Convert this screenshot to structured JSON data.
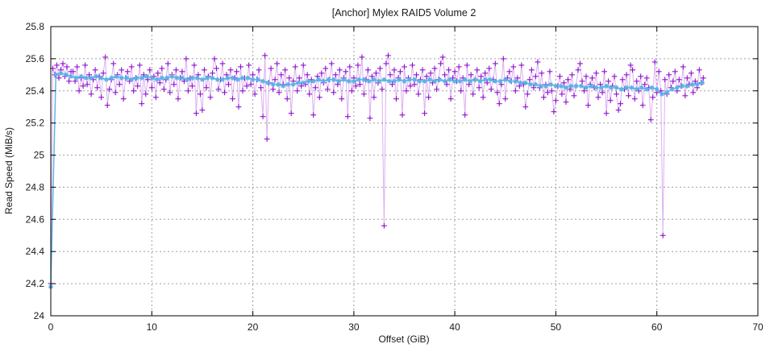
{
  "chart_data": {
    "type": "line",
    "title": "[Anchor] Mylex RAID5 Volume 2",
    "xlabel": "Offset (GiB)",
    "ylabel": "Read Speed (MiB/s)",
    "xlim": [
      0,
      70
    ],
    "ylim": [
      24,
      25.8
    ],
    "xticks": [
      0,
      10,
      20,
      30,
      40,
      50,
      60,
      70
    ],
    "yticks": [
      24,
      24.2,
      24.4,
      24.6,
      24.8,
      25,
      25.2,
      25.4,
      25.6,
      25.8
    ],
    "grid": true,
    "legend": "none",
    "colors": {
      "samples_marker": "#9011cf",
      "samples_line": "#b44fe0",
      "average": "#58b2e3",
      "grid": "#a0a0a0",
      "frame": "#000000",
      "text": "#1a1a1a"
    },
    "series": [
      {
        "name": "read-speed-samples",
        "marker": "plus",
        "color": "#9011cf",
        "line_color": "#b44fe0",
        "line_opacity": 0.45,
        "x_start": 0,
        "x_step": 0.2,
        "values": [
          24.2,
          25.54,
          25.5,
          25.56,
          25.48,
          25.53,
          25.57,
          25.49,
          25.55,
          25.46,
          25.52,
          25.52,
          25.46,
          25.55,
          25.4,
          25.48,
          25.43,
          25.56,
          25.44,
          25.5,
          25.38,
          25.47,
          25.53,
          25.42,
          25.49,
          25.36,
          25.51,
          25.61,
          25.31,
          25.41,
          25.47,
          25.57,
          25.39,
          25.5,
          25.44,
          25.53,
          25.35,
          25.48,
          25.52,
          25.46,
          25.55,
          25.4,
          25.48,
          25.43,
          25.56,
          25.32,
          25.5,
          25.38,
          25.47,
          25.53,
          25.42,
          25.49,
          25.36,
          25.51,
          25.45,
          25.54,
          25.41,
          25.47,
          25.57,
          25.39,
          25.5,
          25.44,
          25.53,
          25.35,
          25.48,
          25.52,
          25.46,
          25.6,
          25.4,
          25.48,
          25.43,
          25.56,
          25.26,
          25.5,
          25.38,
          25.28,
          25.53,
          25.42,
          25.49,
          25.36,
          25.51,
          25.6,
          25.54,
          25.41,
          25.47,
          25.57,
          25.39,
          25.5,
          25.44,
          25.53,
          25.35,
          25.48,
          25.52,
          25.3,
          25.55,
          25.4,
          25.48,
          25.43,
          25.56,
          25.44,
          25.5,
          25.38,
          25.47,
          25.53,
          25.42,
          25.24,
          25.62,
          25.1,
          25.45,
          25.54,
          25.41,
          25.47,
          25.57,
          25.39,
          25.5,
          25.44,
          25.53,
          25.35,
          25.48,
          25.26,
          25.46,
          25.55,
          25.4,
          25.48,
          25.43,
          25.56,
          25.44,
          25.5,
          25.38,
          25.47,
          25.25,
          25.42,
          25.49,
          25.36,
          25.51,
          25.45,
          25.54,
          25.41,
          25.47,
          25.57,
          25.39,
          25.5,
          25.44,
          25.53,
          25.35,
          25.48,
          25.52,
          25.24,
          25.55,
          25.4,
          25.48,
          25.43,
          25.56,
          25.44,
          25.61,
          25.38,
          25.47,
          25.53,
          25.23,
          25.49,
          25.36,
          25.51,
          25.45,
          25.54,
          25.41,
          24.56,
          25.57,
          25.62,
          25.5,
          25.44,
          25.53,
          25.35,
          25.48,
          25.52,
          25.25,
          25.55,
          25.4,
          25.48,
          25.43,
          25.56,
          25.44,
          25.5,
          25.38,
          25.47,
          25.53,
          25.26,
          25.49,
          25.36,
          25.51,
          25.45,
          25.54,
          25.41,
          25.47,
          25.57,
          25.61,
          25.5,
          25.44,
          25.53,
          25.35,
          25.48,
          25.52,
          25.46,
          25.55,
          25.4,
          25.48,
          25.25,
          25.56,
          25.44,
          25.5,
          25.38,
          25.47,
          25.53,
          25.42,
          25.49,
          25.36,
          25.51,
          25.45,
          25.54,
          25.41,
          25.47,
          25.57,
          25.39,
          25.32,
          25.44,
          25.6,
          25.35,
          25.48,
          25.52,
          25.46,
          25.55,
          25.4,
          25.48,
          25.43,
          25.56,
          25.44,
          25.3,
          25.38,
          25.47,
          25.53,
          25.42,
          25.49,
          25.58,
          25.42,
          25.51,
          25.36,
          25.44,
          25.39,
          25.52,
          25.4,
          25.27,
          25.34,
          25.43,
          25.49,
          25.38,
          25.45,
          25.33,
          25.47,
          25.41,
          25.5,
          25.37,
          25.43,
          25.53,
          25.57,
          25.46,
          25.4,
          25.49,
          25.31,
          25.44,
          25.48,
          25.42,
          25.51,
          25.36,
          25.44,
          25.39,
          25.52,
          25.26,
          25.46,
          25.34,
          25.43,
          25.49,
          25.38,
          25.28,
          25.32,
          25.47,
          25.41,
          25.5,
          25.37,
          25.56,
          25.53,
          25.35,
          25.46,
          25.4,
          25.49,
          25.31,
          25.44,
          25.48,
          25.42,
          25.22,
          25.36,
          25.58,
          25.39,
          25.52,
          25.4,
          24.5,
          25.47,
          25.38,
          25.5,
          25.42,
          25.46,
          25.52,
          25.4,
          25.47,
          25.43,
          25.55,
          25.37,
          25.48,
          25.44,
          25.51,
          25.39,
          25.46,
          25.42,
          25.53,
          25.45,
          25.48
        ]
      },
      {
        "name": "moving-average",
        "marker": "asterisk",
        "color": "#58b2e3",
        "line_opacity": 0.95,
        "x_start": 0,
        "x_step": 0.5,
        "values": [
          24.18,
          25.5,
          25.51,
          25.5,
          25.49,
          25.48,
          25.49,
          25.48,
          25.48,
          25.49,
          25.48,
          25.47,
          25.48,
          25.49,
          25.48,
          25.48,
          25.47,
          25.48,
          25.48,
          25.49,
          25.48,
          25.47,
          25.48,
          25.48,
          25.49,
          25.48,
          25.48,
          25.47,
          25.48,
          25.48,
          25.47,
          25.48,
          25.48,
          25.47,
          25.47,
          25.48,
          25.48,
          25.47,
          25.48,
          25.48,
          25.47,
          25.47,
          25.46,
          25.45,
          25.44,
          25.44,
          25.43,
          25.44,
          25.44,
          25.45,
          25.45,
          25.46,
          25.46,
          25.47,
          25.46,
          25.47,
          25.47,
          25.46,
          25.47,
          25.46,
          25.46,
          25.47,
          25.47,
          25.46,
          25.47,
          25.46,
          25.47,
          25.46,
          25.46,
          25.47,
          25.46,
          25.47,
          25.47,
          25.46,
          25.46,
          25.47,
          25.46,
          25.47,
          25.46,
          25.47,
          25.46,
          25.46,
          25.47,
          25.46,
          25.47,
          25.46,
          25.47,
          25.47,
          25.46,
          25.46,
          25.47,
          25.46,
          25.46,
          25.45,
          25.45,
          25.44,
          25.44,
          25.43,
          25.43,
          25.44,
          25.43,
          25.43,
          25.42,
          25.43,
          25.43,
          25.43,
          25.42,
          25.43,
          25.42,
          25.42,
          25.43,
          25.42,
          25.42,
          25.41,
          25.42,
          25.42,
          25.41,
          25.42,
          25.41,
          25.42,
          25.41,
          25.38,
          25.39,
          25.41,
          25.42,
          25.43,
          25.43,
          25.44,
          25.44,
          25.45
        ]
      }
    ]
  }
}
